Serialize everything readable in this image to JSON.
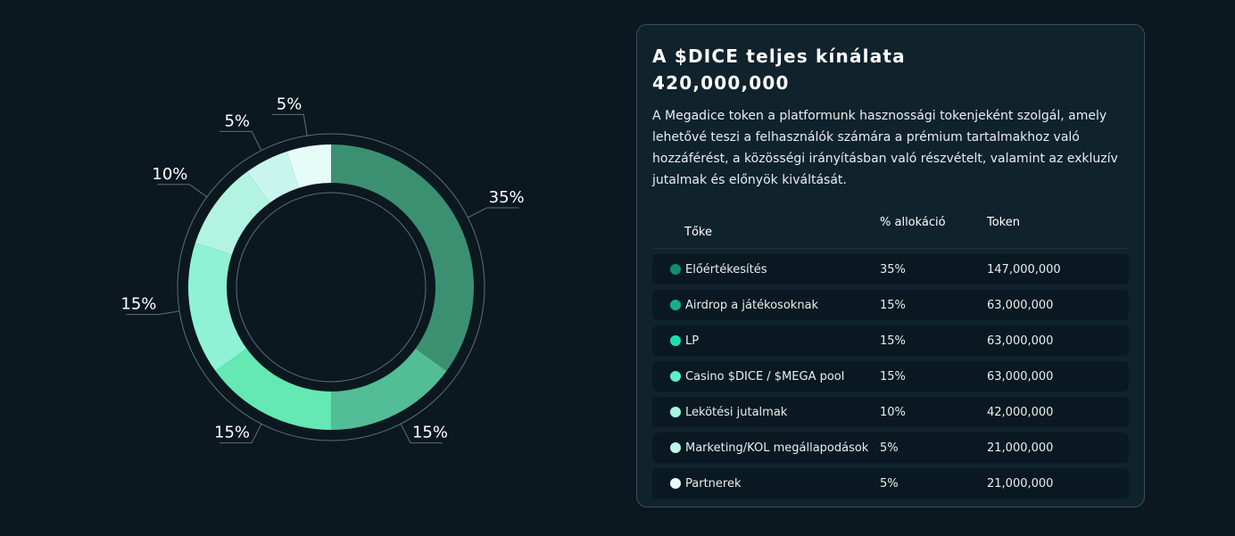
{
  "panel": {
    "title_line1": "A $DICE teljes kínálata",
    "title_line2": "420,000,000",
    "description": "A Megadice token a platformunk hasznossági tokenjeként szolgál, amely lehetővé teszi a felhasználók számára a prémium tartalmakhoz való hozzáférést, a közösségi irányításban való részvételt, valamint az exkluzív jutalmak és előnyök kiváltását.",
    "table": {
      "headers": [
        "Tőke",
        "% allokáció",
        "Token"
      ],
      "rows": [
        {
          "name": "Előértékesítés",
          "pct": "35%",
          "tokens": "147,000,000",
          "color": "#148c6c"
        },
        {
          "name": "Airdrop a játékosoknak",
          "pct": "15%",
          "tokens": "63,000,000",
          "color": "#17b08a"
        },
        {
          "name": "LP",
          "pct": "15%",
          "tokens": "63,000,000",
          "color": "#1fe0ad"
        },
        {
          "name": "Casino $DICE / $MEGA pool",
          "pct": "15%",
          "tokens": "63,000,000",
          "color": "#5ff0c8"
        },
        {
          "name": "Lekötési jutalmak",
          "pct": "10%",
          "tokens": "42,000,000",
          "color": "#a8f5e0"
        },
        {
          "name": "Marketing/KOL megállapodások",
          "pct": "5%",
          "tokens": "21,000,000",
          "color": "#c2f7ea"
        },
        {
          "name": "Partnerek",
          "pct": "5%",
          "tokens": "21,000,000",
          "color": "#e8fcf6"
        }
      ]
    }
  },
  "chart_data": {
    "type": "pie",
    "values": [
      35,
      15,
      15,
      15,
      10,
      5,
      5
    ],
    "labels": [
      "35%",
      "15%",
      "15%",
      "15%",
      "10%",
      "5%",
      "5%"
    ],
    "colors": [
      "#3c9072",
      "#52bd96",
      "#64e8b4",
      "#8ff2d4",
      "#b2f3e2",
      "#c9f6ec",
      "#e6fdf7"
    ]
  }
}
